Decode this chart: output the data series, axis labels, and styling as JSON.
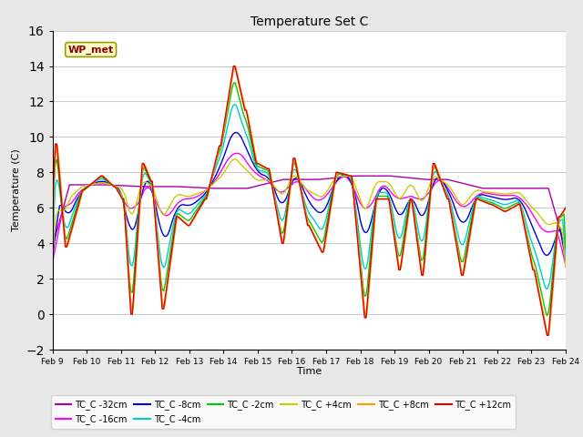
{
  "title": "Temperature Set C",
  "xlabel": "Time",
  "ylabel": "Temperature (C)",
  "ylim": [
    -2,
    16
  ],
  "yticks": [
    -2,
    0,
    2,
    4,
    6,
    8,
    10,
    12,
    14,
    16
  ],
  "xlim": [
    0,
    360
  ],
  "xtick_labels": [
    "Feb 9",
    "Feb 10",
    "Feb 11",
    "Feb 12",
    "Feb 13",
    "Feb 14",
    "Feb 15",
    "Feb 16",
    "Feb 17",
    "Feb 18",
    "Feb 19",
    "Feb 20",
    "Feb 21",
    "Feb 22",
    "Feb 23",
    "Feb 24"
  ],
  "xtick_positions": [
    0,
    24,
    48,
    72,
    96,
    120,
    144,
    168,
    192,
    216,
    240,
    264,
    288,
    312,
    336,
    360
  ],
  "wp_met_label": "WP_met",
  "background_color": "#e8e8e8",
  "plot_bg_color": "#ffffff",
  "series": [
    {
      "label": "TC_C -32cm",
      "color": "#aa00aa"
    },
    {
      "label": "TC_C -16cm",
      "color": "#ff00ff"
    },
    {
      "label": "TC_C -8cm",
      "color": "#0000dd"
    },
    {
      "label": "TC_C -4cm",
      "color": "#00cccc"
    },
    {
      "label": "TC_C -2cm",
      "color": "#00cc00"
    },
    {
      "label": "TC_C +4cm",
      "color": "#cccc00"
    },
    {
      "label": "TC_C +8cm",
      "color": "#ff9900"
    },
    {
      "label": "TC_C +12cm",
      "color": "#dd0000"
    }
  ]
}
